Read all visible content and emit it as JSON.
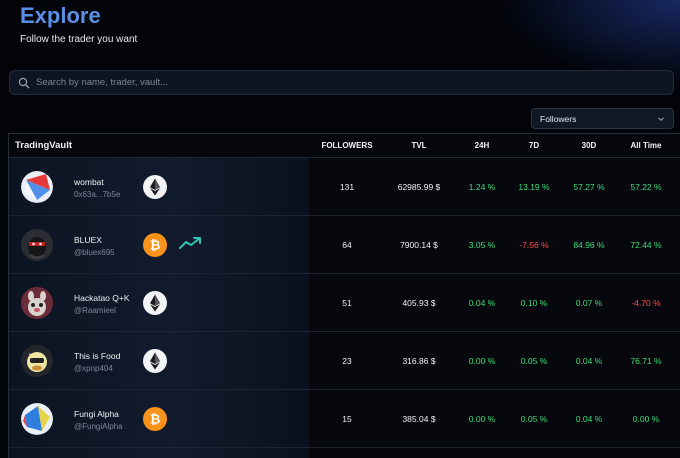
{
  "page": {
    "title": "Explore",
    "subtitle": "Follow the trader you want"
  },
  "search": {
    "placeholder": "Search by name, trader, vault..."
  },
  "sort": {
    "selected": "Followers"
  },
  "table": {
    "headers": {
      "vault": "TradingVault",
      "followers": "FOLLOWERS",
      "tvl": "TVL",
      "h24": "24H",
      "d7": "7D",
      "d30": "30D",
      "all": "All Time"
    },
    "rows": [
      {
        "name": "wombat",
        "handle": "0x63a...7b5e",
        "coin": "eth-icon",
        "trend": false,
        "followers": "131",
        "tvl": "62985.99 $",
        "h24": "1.24 %",
        "d7": "13.19 %",
        "d30": "57.27 %",
        "all": "57.22 %",
        "signs": [
          "pos",
          "pos",
          "pos",
          "pos"
        ]
      },
      {
        "name": "BLUEX",
        "handle": "@bluex695",
        "coin": "btc-icon",
        "trend": true,
        "followers": "64",
        "tvl": "7900.14 $",
        "h24": "3.05 %",
        "d7": "-7.56 %",
        "d30": "84.96 %",
        "all": "72.44 %",
        "signs": [
          "pos",
          "neg",
          "pos",
          "pos"
        ]
      },
      {
        "name": "Hackatao Q+K",
        "handle": "@Raamieel",
        "coin": "eth-icon",
        "trend": false,
        "followers": "51",
        "tvl": "405.93 $",
        "h24": "0.04 %",
        "d7": "0.10 %",
        "d30": "0.07 %",
        "all": "-4.70 %",
        "signs": [
          "pos",
          "pos",
          "pos",
          "neg"
        ]
      },
      {
        "name": "This is Food",
        "handle": "@xpnp404",
        "coin": "eth-icon",
        "trend": false,
        "followers": "23",
        "tvl": "316.86 $",
        "h24": "0.00 %",
        "d7": "0.05 %",
        "d30": "0.04 %",
        "all": "76.71 %",
        "signs": [
          "pos",
          "pos",
          "pos",
          "pos"
        ]
      },
      {
        "name": "Fungi Alpha",
        "handle": "@FungiAlpha",
        "coin": "btc-icon",
        "trend": false,
        "followers": "15",
        "tvl": "385.04 $",
        "h24": "0.00 %",
        "d7": "0.05 %",
        "d30": "0.04 %",
        "all": "0.00 %",
        "signs": [
          "pos",
          "pos",
          "pos",
          "pos"
        ]
      }
    ]
  },
  "colors": {
    "accent": "#5b8fe6",
    "positive": "#3ddc7a",
    "negative": "#ff4d4d",
    "btc": "#f7931a",
    "trend": "#2ec4b6"
  }
}
